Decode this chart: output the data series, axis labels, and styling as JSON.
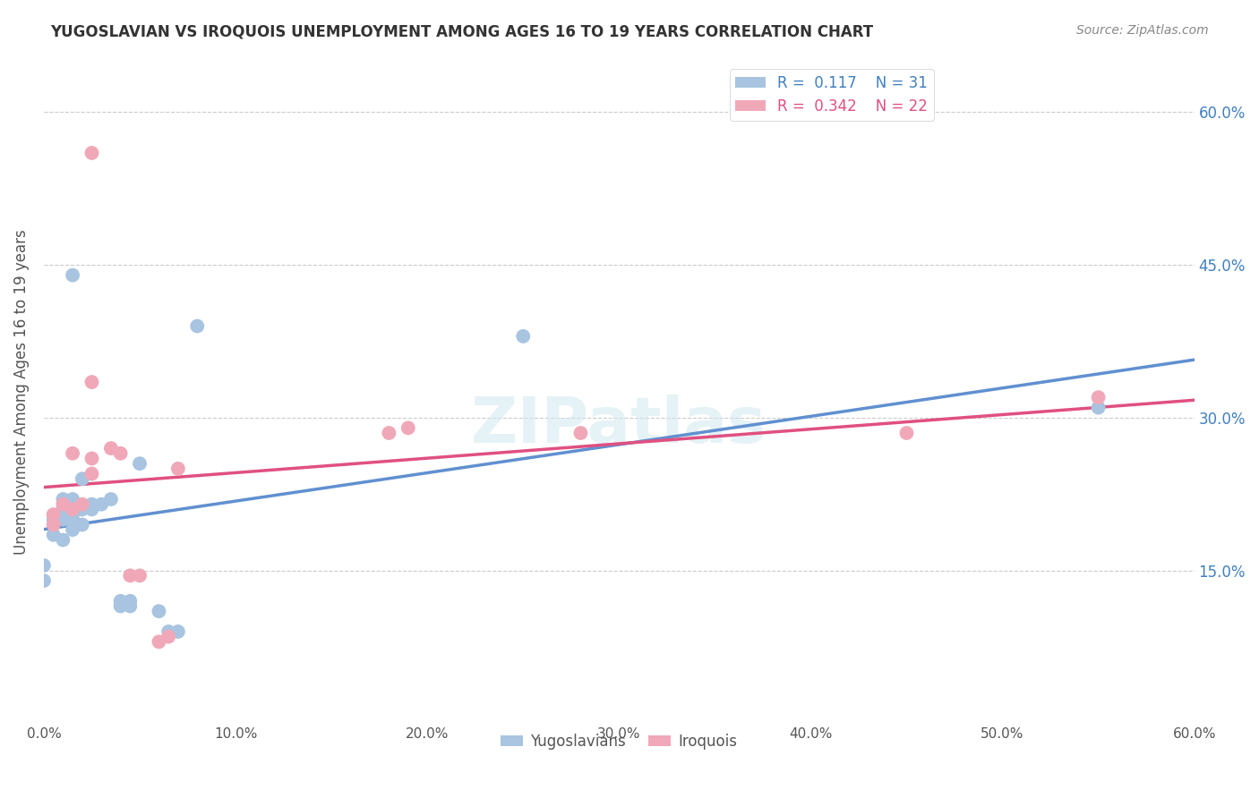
{
  "title": "YUGOSLAVIAN VS IROQUOIS UNEMPLOYMENT AMONG AGES 16 TO 19 YEARS CORRELATION CHART",
  "source": "Source: ZipAtlas.com",
  "ylabel": "Unemployment Among Ages 16 to 19 years",
  "y_ticks": [
    "15.0%",
    "30.0%",
    "45.0%",
    "60.0%"
  ],
  "y_tick_vals": [
    0.15,
    0.3,
    0.45,
    0.6
  ],
  "x_tick_vals": [
    0.0,
    0.1,
    0.2,
    0.3,
    0.4,
    0.5,
    0.6
  ],
  "xlim": [
    0.0,
    0.6
  ],
  "ylim": [
    0.0,
    0.65
  ],
  "legend_r1": "R =  0.117",
  "legend_n1": "N = 31",
  "legend_r2": "R =  0.342",
  "legend_n2": "N = 22",
  "color_blue": "#a8c4e0",
  "color_pink": "#f0a8b8",
  "color_blue_text": "#4080c0",
  "color_pink_text": "#e05080",
  "color_line_blue": "#6090d0",
  "color_line_pink": "#e05080",
  "color_line_blue_dash": "#90b8e0",
  "watermark": "ZIPatlas",
  "yug_points": [
    [
      0.0,
      0.14
    ],
    [
      0.0,
      0.155
    ],
    [
      0.005,
      0.185
    ],
    [
      0.005,
      0.2
    ],
    [
      0.01,
      0.18
    ],
    [
      0.01,
      0.2
    ],
    [
      0.01,
      0.21
    ],
    [
      0.01,
      0.22
    ],
    [
      0.015,
      0.19
    ],
    [
      0.015,
      0.2
    ],
    [
      0.015,
      0.205
    ],
    [
      0.015,
      0.22
    ],
    [
      0.02,
      0.195
    ],
    [
      0.02,
      0.21
    ],
    [
      0.02,
      0.24
    ],
    [
      0.025,
      0.21
    ],
    [
      0.025,
      0.215
    ],
    [
      0.03,
      0.215
    ],
    [
      0.035,
      0.22
    ],
    [
      0.04,
      0.115
    ],
    [
      0.04,
      0.12
    ],
    [
      0.045,
      0.115
    ],
    [
      0.045,
      0.12
    ],
    [
      0.06,
      0.11
    ],
    [
      0.065,
      0.09
    ],
    [
      0.07,
      0.09
    ],
    [
      0.05,
      0.255
    ],
    [
      0.08,
      0.39
    ],
    [
      0.015,
      0.44
    ],
    [
      0.25,
      0.38
    ],
    [
      0.55,
      0.31
    ]
  ],
  "iro_points": [
    [
      0.005,
      0.195
    ],
    [
      0.005,
      0.205
    ],
    [
      0.01,
      0.215
    ],
    [
      0.015,
      0.21
    ],
    [
      0.02,
      0.215
    ],
    [
      0.025,
      0.245
    ],
    [
      0.025,
      0.26
    ],
    [
      0.035,
      0.27
    ],
    [
      0.04,
      0.265
    ],
    [
      0.045,
      0.145
    ],
    [
      0.05,
      0.145
    ],
    [
      0.06,
      0.08
    ],
    [
      0.065,
      0.085
    ],
    [
      0.07,
      0.25
    ],
    [
      0.18,
      0.285
    ],
    [
      0.19,
      0.29
    ],
    [
      0.28,
      0.285
    ],
    [
      0.45,
      0.285
    ],
    [
      0.55,
      0.32
    ],
    [
      0.025,
      0.335
    ],
    [
      0.025,
      0.56
    ],
    [
      0.015,
      0.265
    ]
  ]
}
